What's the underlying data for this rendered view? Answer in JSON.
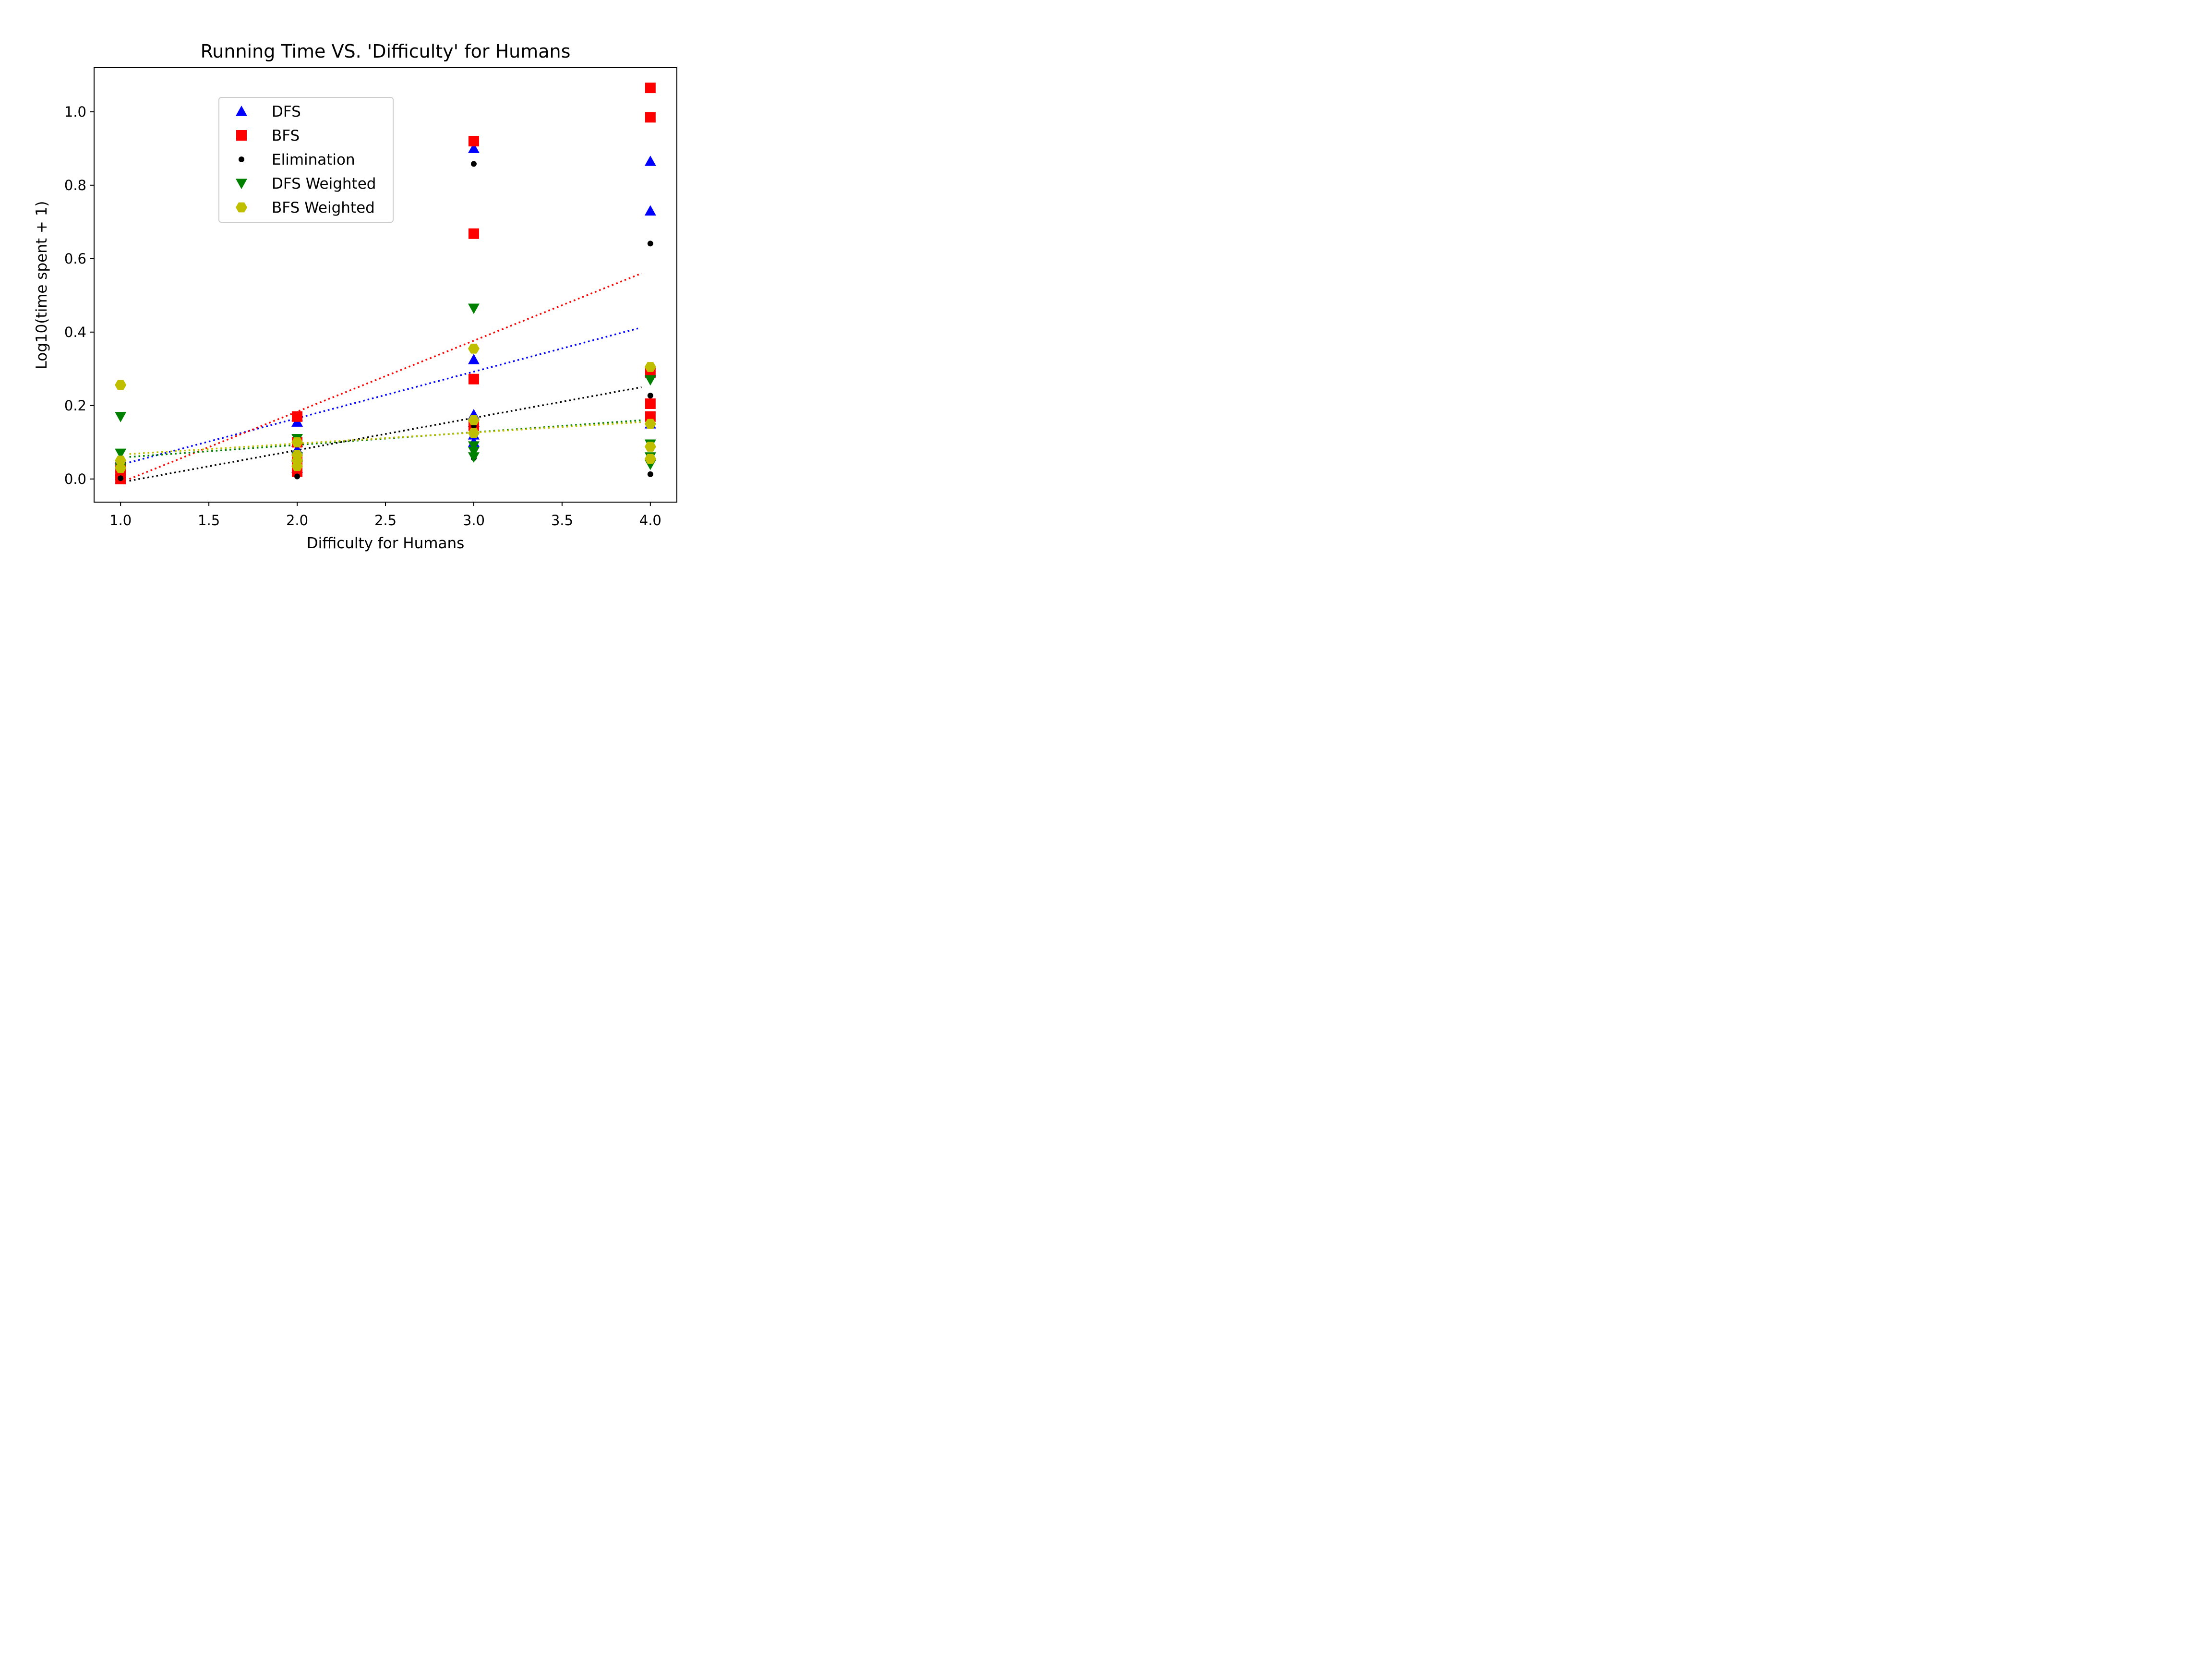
{
  "chart_data": {
    "type": "scatter",
    "title": "Running Time VS. 'Difficulty' for Humans",
    "xlabel": "Difficulty for Humans",
    "ylabel": "Log10(time spent + 1)",
    "xlim": [
      0.85,
      4.15
    ],
    "ylim": [
      -0.063,
      1.12
    ],
    "xticks": [
      "1.0",
      "1.5",
      "2.0",
      "2.5",
      "3.0",
      "3.5",
      "4.0"
    ],
    "yticks": [
      "0.0",
      "0.2",
      "0.4",
      "0.6",
      "0.8",
      "1.0"
    ],
    "grid": false,
    "legend_position": "upper-left",
    "series": [
      {
        "name": "DFS",
        "marker": "triangle-up",
        "color": "#0000ff",
        "points": [
          [
            1,
            0.0
          ],
          [
            1,
            0.01
          ],
          [
            1,
            0.02
          ],
          [
            1,
            0.04
          ],
          [
            1,
            0.055
          ],
          [
            2,
            0.03
          ],
          [
            2,
            0.06
          ],
          [
            2,
            0.08
          ],
          [
            2,
            0.1
          ],
          [
            2,
            0.155
          ],
          [
            2,
            0.17
          ],
          [
            3,
            0.9
          ],
          [
            3,
            0.325
          ],
          [
            3,
            0.175
          ],
          [
            3,
            0.155
          ],
          [
            3,
            0.12
          ],
          [
            3,
            0.1
          ],
          [
            4,
            0.865
          ],
          [
            4,
            0.73
          ],
          [
            4,
            0.29
          ],
          [
            4,
            0.15
          ]
        ],
        "trend": [
          [
            1.05,
            0.045
          ],
          [
            3.93,
            0.41
          ]
        ]
      },
      {
        "name": "BFS",
        "marker": "square",
        "color": "#ff0000",
        "points": [
          [
            1,
            0.0
          ],
          [
            1,
            0.01
          ],
          [
            1,
            0.03
          ],
          [
            2,
            0.02
          ],
          [
            2,
            0.05
          ],
          [
            2,
            0.1
          ],
          [
            2,
            0.17
          ],
          [
            3,
            0.92
          ],
          [
            3,
            0.668
          ],
          [
            3,
            0.272
          ],
          [
            3,
            0.145
          ],
          [
            4,
            1.065
          ],
          [
            4,
            0.985
          ],
          [
            4,
            0.29
          ],
          [
            4,
            0.205
          ],
          [
            4,
            0.17
          ]
        ],
        "trend": [
          [
            1.05,
            0.0
          ],
          [
            3.95,
            0.56
          ]
        ]
      },
      {
        "name": "Elimination",
        "marker": "circle",
        "color": "#000000",
        "points": [
          [
            1,
            0.002
          ],
          [
            2,
            0.007
          ],
          [
            2,
            0.04
          ],
          [
            3,
            0.858
          ],
          [
            3,
            0.057
          ],
          [
            3,
            0.145
          ],
          [
            4,
            0.641
          ],
          [
            4,
            0.227
          ],
          [
            4,
            0.013
          ]
        ],
        "trend": [
          [
            1.05,
            -0.005
          ],
          [
            3.95,
            0.25
          ]
        ]
      },
      {
        "name": "DFS Weighted",
        "marker": "triangle-down",
        "color": "#008000",
        "points": [
          [
            1,
            0.17
          ],
          [
            1,
            0.07
          ],
          [
            1,
            0.03
          ],
          [
            2,
            0.11
          ],
          [
            2,
            0.06
          ],
          [
            2,
            0.04
          ],
          [
            3,
            0.465
          ],
          [
            3,
            0.09
          ],
          [
            3,
            0.075
          ],
          [
            3,
            0.06
          ],
          [
            4,
            0.27
          ],
          [
            4,
            0.095
          ],
          [
            4,
            0.06
          ],
          [
            4,
            0.04
          ]
        ],
        "trend": [
          [
            1.05,
            0.06
          ],
          [
            3.95,
            0.16
          ]
        ]
      },
      {
        "name": "BFS Weighted",
        "marker": "hexagon",
        "color": "#bfbf00",
        "points": [
          [
            1,
            0.256
          ],
          [
            1,
            0.05
          ],
          [
            1,
            0.03
          ],
          [
            2,
            0.1
          ],
          [
            2,
            0.065
          ],
          [
            2,
            0.05
          ],
          [
            2,
            0.035
          ],
          [
            3,
            0.355
          ],
          [
            3,
            0.16
          ],
          [
            3,
            0.125
          ],
          [
            4,
            0.305
          ],
          [
            4,
            0.15
          ],
          [
            4,
            0.088
          ],
          [
            4,
            0.055
          ]
        ],
        "trend": [
          [
            1.05,
            0.068
          ],
          [
            3.95,
            0.155
          ]
        ]
      }
    ]
  }
}
